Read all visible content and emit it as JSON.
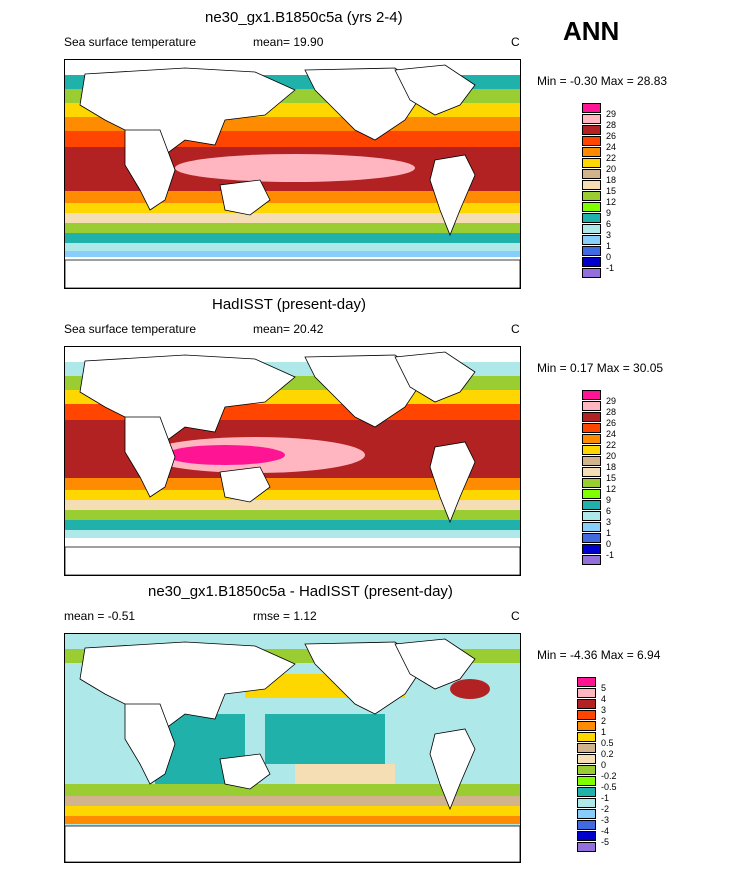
{
  "season": "ANN",
  "panels": [
    {
      "title": "ne30_gx1.B1850c5a (yrs 2-4)",
      "left_label": "Sea surface temperature",
      "mean_label": "mean=  19.90",
      "rmse_label": "",
      "unit": "C",
      "minmax": "Min =  -0.30 Max =  28.83",
      "levels": [
        "29",
        "28",
        "26",
        "24",
        "22",
        "20",
        "18",
        "15",
        "12",
        "9",
        "6",
        "3",
        "1",
        "0",
        "-1"
      ],
      "colors": [
        "#ff1493",
        "#ffb6c1",
        "#b22222",
        "#ff4500",
        "#ff8c00",
        "#ffd700",
        "#d2b48c",
        "#f5deb3",
        "#9acd32",
        "#7fff00",
        "#20b2aa",
        "#aee8e8",
        "#87cefa",
        "#4169e1",
        "#0000cd",
        "#9370db"
      ]
    },
    {
      "title": "HadISST (present-day)",
      "left_label": "Sea surface temperature",
      "mean_label": "mean=  20.42",
      "rmse_label": "",
      "unit": "C",
      "minmax": "Min =   0.17 Max =  30.05",
      "levels": [
        "29",
        "28",
        "26",
        "24",
        "22",
        "20",
        "18",
        "15",
        "12",
        "9",
        "6",
        "3",
        "1",
        "0",
        "-1"
      ],
      "colors": [
        "#ff1493",
        "#ffb6c1",
        "#b22222",
        "#ff4500",
        "#ff8c00",
        "#ffd700",
        "#d2b48c",
        "#f5deb3",
        "#9acd32",
        "#7fff00",
        "#20b2aa",
        "#aee8e8",
        "#87cefa",
        "#4169e1",
        "#0000cd",
        "#9370db"
      ]
    },
    {
      "title": "ne30_gx1.B1850c5a - HadISST (present-day)",
      "left_label": "mean =  -0.51",
      "mean_label": "",
      "rmse_label": "rmse =   1.12",
      "unit": "C",
      "minmax": "Min =  -4.36 Max =   6.94",
      "levels": [
        "5",
        "4",
        "3",
        "2",
        "1",
        "0.5",
        "0.2",
        "0",
        "-0.2",
        "-0.5",
        "-1",
        "-2",
        "-3",
        "-4",
        "-5"
      ],
      "colors": [
        "#ff1493",
        "#ffb6c1",
        "#b22222",
        "#ff4500",
        "#ff8c00",
        "#ffd700",
        "#d2b48c",
        "#f5deb3",
        "#9acd32",
        "#7fff00",
        "#20b2aa",
        "#aee8e8",
        "#87cefa",
        "#4169e1",
        "#0000cd",
        "#9370db"
      ]
    }
  ]
}
